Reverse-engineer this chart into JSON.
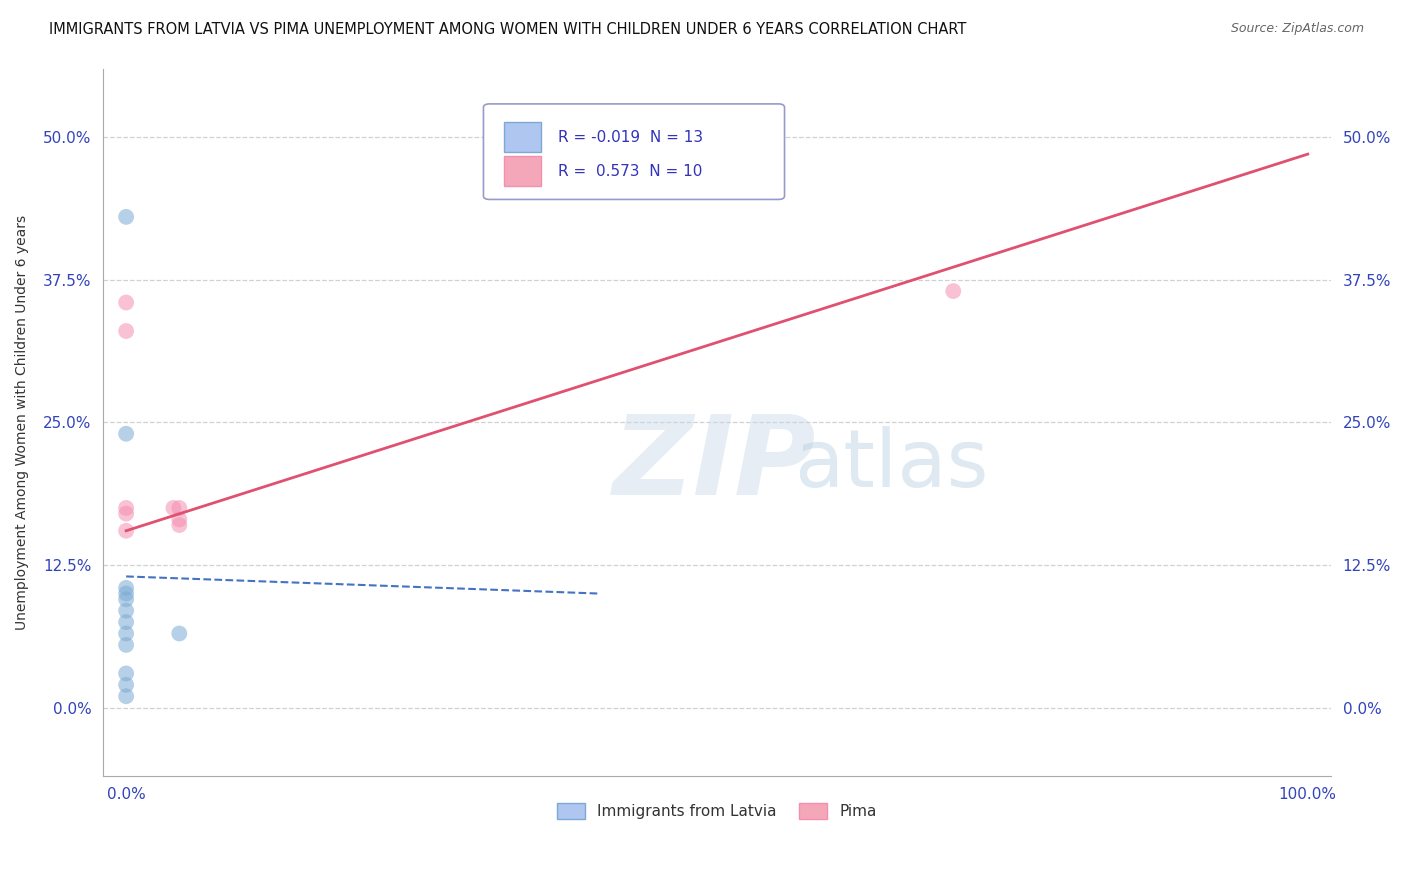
{
  "title": "IMMIGRANTS FROM LATVIA VS PIMA UNEMPLOYMENT AMONG WOMEN WITH CHILDREN UNDER 6 YEARS CORRELATION CHART",
  "source": "Source: ZipAtlas.com",
  "ylabel": "Unemployment Among Women with Children Under 6 years",
  "xlim": [
    -0.02,
    1.02
  ],
  "ylim": [
    -0.06,
    0.56
  ],
  "yticks": [
    0.0,
    0.125,
    0.25,
    0.375,
    0.5
  ],
  "ytick_labels": [
    "0.0%",
    "12.5%",
    "25.0%",
    "37.5%",
    "50.0%"
  ],
  "xtick_labels": [
    "0.0%",
    "100.0%"
  ],
  "xticks": [
    0.0,
    1.0
  ],
  "blue_R": "-0.019",
  "blue_N": "13",
  "pink_R": "0.573",
  "pink_N": "10",
  "blue_scatter_x": [
    0.0,
    0.0,
    0.0,
    0.0,
    0.0,
    0.0,
    0.0,
    0.0,
    0.0,
    0.0,
    0.0,
    0.0,
    0.045
  ],
  "blue_scatter_y": [
    0.43,
    0.01,
    0.02,
    0.03,
    0.055,
    0.065,
    0.075,
    0.085,
    0.095,
    0.1,
    0.105,
    0.24,
    0.065
  ],
  "pink_scatter_x": [
    0.0,
    0.0,
    0.0,
    0.0,
    0.04,
    0.045,
    0.045,
    0.045,
    0.7,
    0.0
  ],
  "pink_scatter_y": [
    0.33,
    0.155,
    0.17,
    0.175,
    0.175,
    0.175,
    0.16,
    0.165,
    0.365,
    0.355
  ],
  "blue_trend_x": [
    0.0,
    0.4
  ],
  "blue_trend_y": [
    0.115,
    0.1
  ],
  "pink_trend_x": [
    0.0,
    1.0
  ],
  "pink_trend_y": [
    0.155,
    0.485
  ],
  "blue_scatter_color": "#7baad4",
  "pink_scatter_color": "#f48fb1",
  "blue_line_color": "#4472c4",
  "pink_line_color": "#e05070",
  "blue_legend_color": "#aec6f0",
  "pink_legend_color": "#f4a7b9",
  "marker_size": 130,
  "alpha": 0.55,
  "background_color": "#ffffff",
  "grid_color": "#cccccc",
  "title_color": "#111111",
  "source_color": "#666666",
  "tick_color": "#3344bb",
  "ylabel_color": "#333333",
  "legend_text_color": "#3333bb",
  "watermark_ZIP_color": "#c8d8e8",
  "watermark_atlas_color": "#b8cfe0",
  "watermark_alpha": 0.45
}
